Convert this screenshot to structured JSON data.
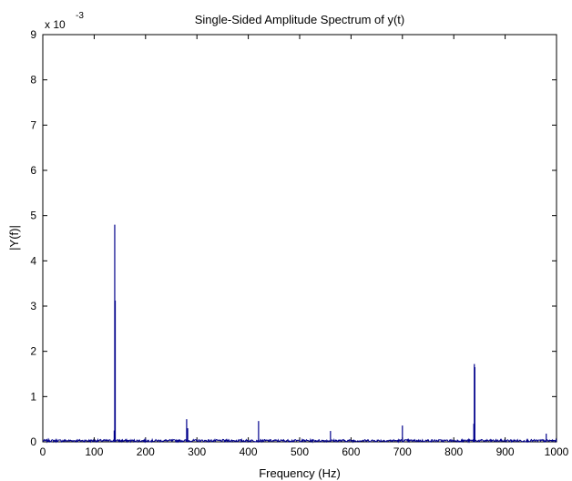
{
  "chart_data": {
    "type": "line",
    "title": "Single-Sided Amplitude Spectrum of y(t)",
    "xlabel": "Frequency (Hz)",
    "ylabel": "|Y(f)|",
    "y_multiplier_base": "x 10",
    "y_multiplier_exponent": "-3",
    "xlim": [
      0,
      1000
    ],
    "ylim": [
      0,
      9
    ],
    "x_ticks": [
      0,
      100,
      200,
      300,
      400,
      500,
      600,
      700,
      800,
      900,
      1000
    ],
    "y_ticks": [
      0,
      1,
      2,
      3,
      4,
      5,
      6,
      7,
      8,
      9
    ],
    "grid": false,
    "series_color": "#00008B",
    "noise_floor": 0.05,
    "peaks": [
      {
        "x": 140,
        "y": 4.8
      },
      {
        "x": 141,
        "y": 3.12
      },
      {
        "x": 139,
        "y": 0.25
      },
      {
        "x": 280,
        "y": 0.5
      },
      {
        "x": 282,
        "y": 0.3
      },
      {
        "x": 420,
        "y": 0.46
      },
      {
        "x": 560,
        "y": 0.24
      },
      {
        "x": 700,
        "y": 0.36
      },
      {
        "x": 840,
        "y": 1.72
      },
      {
        "x": 841,
        "y": 1.65
      },
      {
        "x": 839,
        "y": 0.4
      },
      {
        "x": 980,
        "y": 0.18
      }
    ]
  }
}
